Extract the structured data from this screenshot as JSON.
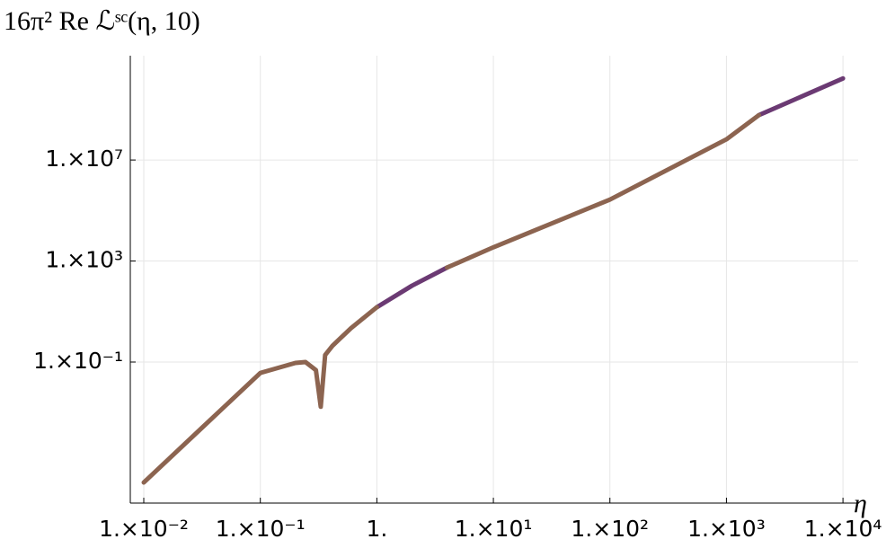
{
  "chart_data": {
    "type": "line",
    "title": "16π² Re ℒˢᶜ(η, 10)",
    "x_label": "η",
    "xlog": true,
    "ylog": true,
    "grid": true,
    "x": [
      0.01,
      0.03,
      0.1,
      0.2,
      0.244,
      0.3,
      0.33,
      0.36,
      0.416,
      0.6,
      1,
      2,
      4,
      10,
      100,
      1000,
      1900,
      10000
    ],
    "series": [
      {
        "color": "#6b3a73",
        "values": [
          null,
          null,
          null,
          null,
          null,
          null,
          null,
          null,
          null,
          null,
          14.8,
          105,
          550,
          null,
          null,
          null,
          600000000,
          17000000000
        ]
      },
      {
        "color": "#8c6450",
        "values": [
          1.7e-06,
          0.0002,
          0.037,
          0.092,
          0.1,
          0.048,
          0.0017,
          0.19,
          0.44,
          2.2,
          14.8,
          null,
          550,
          3500,
          270000,
          66000000,
          600000000,
          null
        ]
      }
    ],
    "xlim": [
      0.00766,
      13500
    ],
    "ylim": [
      2.6e-07,
      135000000000.0
    ],
    "xticks": [
      {
        "value": 0.01,
        "label": "1.×10⁻²"
      },
      {
        "value": 0.1,
        "label": "1.×10⁻¹"
      },
      {
        "value": 1,
        "label": "1."
      },
      {
        "value": 10,
        "label": "1.×10¹"
      },
      {
        "value": 100,
        "label": "1.×10²"
      },
      {
        "value": 1000,
        "label": "1.×10³"
      },
      {
        "value": 10000,
        "label": "1.×10⁴"
      }
    ],
    "yticks": [
      {
        "value": 0.1,
        "label": "1.×10⁻¹"
      },
      {
        "value": 1000,
        "label": "1.×10³"
      },
      {
        "value": 10000000,
        "label": "1.×10⁷"
      }
    ]
  }
}
